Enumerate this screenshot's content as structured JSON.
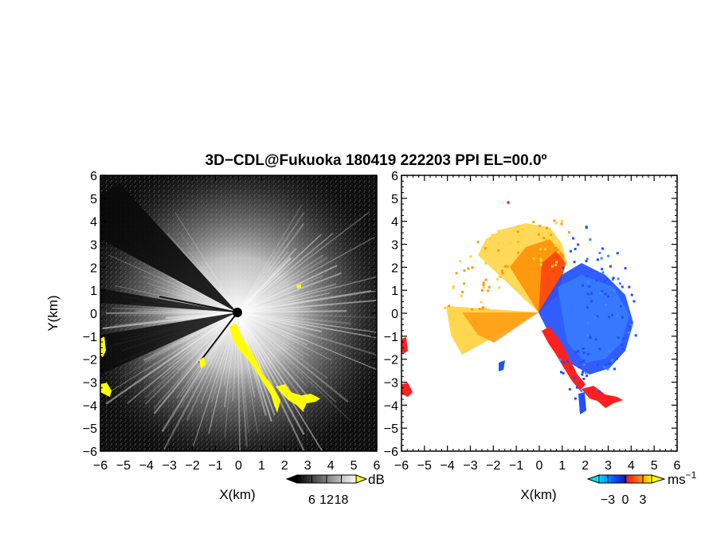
{
  "chart_data": [
    {
      "type": "heatmap",
      "panel": "reflectivity-snr",
      "title": "3D−CDL@Fukuoka 180419 222203 PPI EL=00.0º",
      "xlabel": "X(km)",
      "ylabel": "Y(km)",
      "xlim": [
        -6,
        6
      ],
      "ylim": [
        -6,
        6
      ],
      "x_ticks": [
        "−6",
        "−5",
        "−4",
        "−3",
        "−2",
        "−1",
        "0",
        "1",
        "2",
        "3",
        "4",
        "5",
        "6"
      ],
      "y_ticks": [
        "6",
        "5",
        "4",
        "3",
        "2",
        "1",
        "0",
        "−1",
        "−2",
        "−3",
        "−4",
        "−5",
        "−6"
      ],
      "colorbar": {
        "unit": "dB",
        "ticks": [
          "6",
          "12",
          "18"
        ],
        "range": [
          0,
          24
        ]
      },
      "colors": {
        "background": "#0a0a0a",
        "signal": "#ffffff",
        "clutter": "#ffff00"
      }
    },
    {
      "type": "heatmap",
      "panel": "doppler-velocity",
      "xlabel": "X(km)",
      "ylabel": "",
      "xlim": [
        -6,
        6
      ],
      "ylim": [
        -6,
        6
      ],
      "x_ticks": [
        "−6",
        "−5",
        "−4",
        "−3",
        "−2",
        "−1",
        "0",
        "1",
        "2",
        "3",
        "4",
        "5",
        "6"
      ],
      "y_ticks": [
        "6",
        "5",
        "4",
        "3",
        "2",
        "1",
        "0",
        "−1",
        "−2",
        "−3",
        "−4",
        "−5",
        "−6"
      ],
      "colorbar": {
        "unit": "ms",
        "unit_exp": "−1",
        "ticks": [
          "−3",
          "0",
          "3"
        ],
        "range": [
          -4.5,
          4.5
        ]
      },
      "colors": {
        "toward": "#1f4fff",
        "away": "#ff8c00",
        "far_away": "#ffe600",
        "clutter": "#ff2020",
        "background": "#ffffff"
      }
    }
  ]
}
